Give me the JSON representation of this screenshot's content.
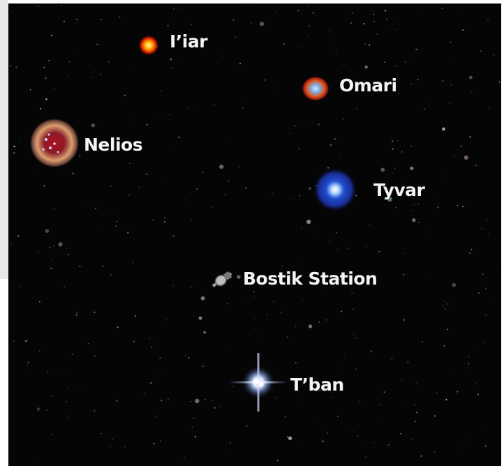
{
  "map": {
    "locations": [
      {
        "label": "I’iar"
      },
      {
        "label": "Omari"
      },
      {
        "label": "Nelios"
      },
      {
        "label": "Tyvar"
      },
      {
        "label": "Bostik Station"
      },
      {
        "label": "T’ban"
      }
    ]
  }
}
